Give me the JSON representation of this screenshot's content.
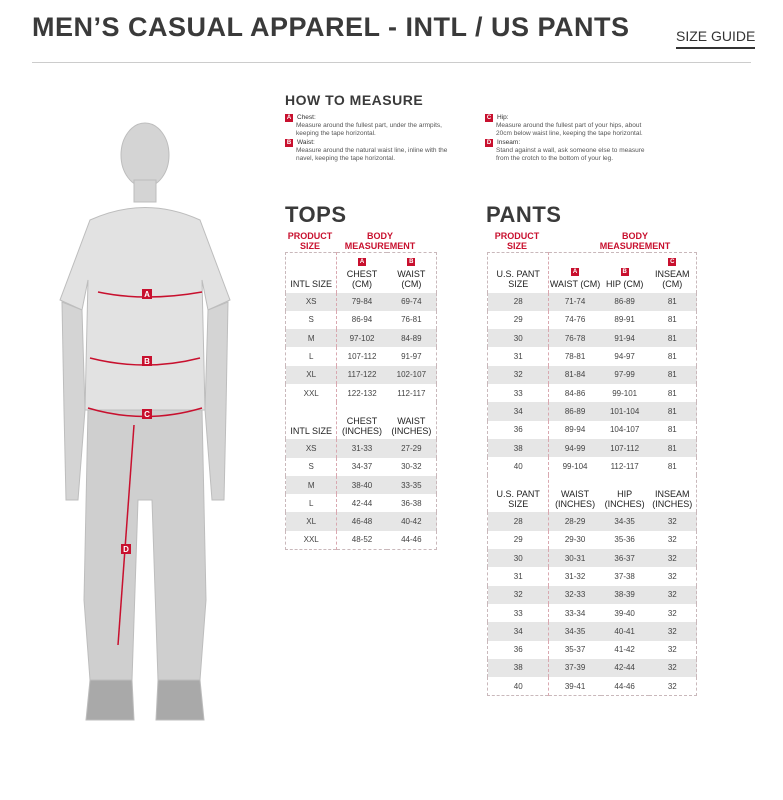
{
  "header": {
    "title": "MEN’S CASUAL APPAREL - INTL / US PANTS",
    "size_guide": "SIZE GUIDE"
  },
  "how_to_measure": {
    "title": "HOW TO MEASURE",
    "items": [
      {
        "badge": "A",
        "label": "Chest:",
        "text": "Measure around the fullest part, under the armpits, keeping the tape horizontal."
      },
      {
        "badge": "B",
        "label": "Waist:",
        "text": "Measure around the natural waist line, inline with the navel, keeping the tape horizontal."
      },
      {
        "badge": "C",
        "label": "Hip:",
        "text": "Measure around the fullest part of your hips, about 20cm below waist line, keeping the tape horizontal."
      },
      {
        "badge": "D",
        "label": "Inseam:",
        "text": "Stand against a wall, ask someone else to measure from the crotch to the bottom of your leg."
      }
    ]
  },
  "figure": {
    "markers": [
      "A",
      "B",
      "C",
      "D"
    ],
    "accent": "#c8102e"
  },
  "tops": {
    "title": "TOPS",
    "product_size": "PRODUCT SIZE",
    "body_measurement": "BODY MEASUREMENT",
    "cm_header": [
      "INTL SIZE",
      "CHEST (CM)",
      "WAIST (CM)"
    ],
    "badges": [
      "A",
      "B"
    ],
    "cm_rows": [
      [
        "XS",
        "79-84",
        "69-74"
      ],
      [
        "S",
        "86-94",
        "76-81"
      ],
      [
        "M",
        "97-102",
        "84-89"
      ],
      [
        "L",
        "107-112",
        "91-97"
      ],
      [
        "XL",
        "117-122",
        "102-107"
      ],
      [
        "XXL",
        "122-132",
        "112-117"
      ]
    ],
    "in_header": [
      "INTL SIZE",
      "CHEST (INCHES)",
      "WAIST (INCHES)"
    ],
    "in_rows": [
      [
        "XS",
        "31-33",
        "27-29"
      ],
      [
        "S",
        "34-37",
        "30-32"
      ],
      [
        "M",
        "38-40",
        "33-35"
      ],
      [
        "L",
        "42-44",
        "36-38"
      ],
      [
        "XL",
        "46-48",
        "40-42"
      ],
      [
        "XXL",
        "48-52",
        "44-46"
      ]
    ]
  },
  "pants": {
    "title": "PANTS",
    "product_size": "PRODUCT SIZE",
    "body_measurement": "BODY MEASUREMENT",
    "cm_header": [
      "U.S. PANT SIZE",
      "WAIST (CM)",
      "HIP (CM)",
      "INSEAM (CM)"
    ],
    "badges": [
      "A",
      "B",
      "C"
    ],
    "cm_rows": [
      [
        "28",
        "71-74",
        "86-89",
        "81"
      ],
      [
        "29",
        "74-76",
        "89-91",
        "81"
      ],
      [
        "30",
        "76-78",
        "91-94",
        "81"
      ],
      [
        "31",
        "78-81",
        "94-97",
        "81"
      ],
      [
        "32",
        "81-84",
        "97-99",
        "81"
      ],
      [
        "33",
        "84-86",
        "99-101",
        "81"
      ],
      [
        "34",
        "86-89",
        "101-104",
        "81"
      ],
      [
        "36",
        "89-94",
        "104-107",
        "81"
      ],
      [
        "38",
        "94-99",
        "107-112",
        "81"
      ],
      [
        "40",
        "99-104",
        "112-117",
        "81"
      ]
    ],
    "in_header": [
      "U.S. PANT SIZE",
      "WAIST (INCHES)",
      "HIP (INCHES)",
      "INSEAM (INCHES)"
    ],
    "in_rows": [
      [
        "28",
        "28-29",
        "34-35",
        "32"
      ],
      [
        "29",
        "29-30",
        "35-36",
        "32"
      ],
      [
        "30",
        "30-31",
        "36-37",
        "32"
      ],
      [
        "31",
        "31-32",
        "37-38",
        "32"
      ],
      [
        "32",
        "32-33",
        "38-39",
        "32"
      ],
      [
        "33",
        "33-34",
        "39-40",
        "32"
      ],
      [
        "34",
        "34-35",
        "40-41",
        "32"
      ],
      [
        "36",
        "35-37",
        "41-42",
        "32"
      ],
      [
        "38",
        "37-39",
        "42-44",
        "32"
      ],
      [
        "40",
        "39-41",
        "44-46",
        "32"
      ]
    ]
  }
}
